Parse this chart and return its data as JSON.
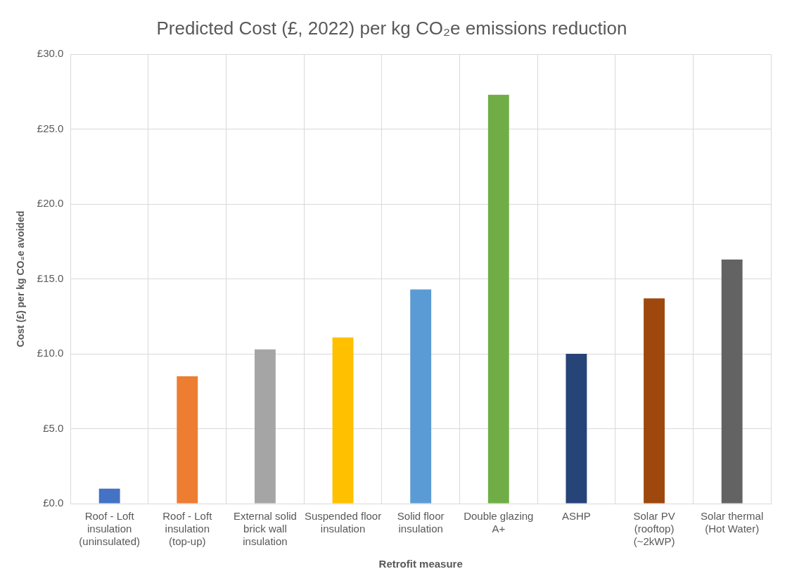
{
  "chart_data": {
    "type": "bar",
    "title": "Predicted Cost (£, 2022) per kg CO₂e emissions reduction",
    "xlabel": "Retrofit measure",
    "ylabel": "Cost (£) per kg CO₂e avoided",
    "categories": [
      "Roof - Loft insulation (uninsulated)",
      "Roof - Loft insulation (top-up)",
      "External solid brick wall insulation",
      "Suspended floor insulation",
      "Solid floor insulation",
      "Double glazing A+",
      "ASHP",
      "Solar PV (rooftop) (~2kWP)",
      "Solar thermal (Hot Water)"
    ],
    "values": [
      1.0,
      8.5,
      10.3,
      11.1,
      14.3,
      27.3,
      10.0,
      13.7,
      16.3
    ],
    "colors": [
      "#4472c4",
      "#ed7d31",
      "#a5a5a5",
      "#ffc000",
      "#5b9bd5",
      "#70ad47",
      "#264478",
      "#9e480e",
      "#636363"
    ],
    "ylim": [
      0,
      30
    ],
    "yticks": [
      {
        "value": 0,
        "label": "£0.0"
      },
      {
        "value": 5,
        "label": "£5.0"
      },
      {
        "value": 10,
        "label": "£10.0"
      },
      {
        "value": 15,
        "label": "£15.0"
      },
      {
        "value": 20,
        "label": "£20.0"
      },
      {
        "value": 25,
        "label": "£25.0"
      },
      {
        "value": 30,
        "label": "£30.0"
      }
    ],
    "grid": true,
    "legend": false
  }
}
